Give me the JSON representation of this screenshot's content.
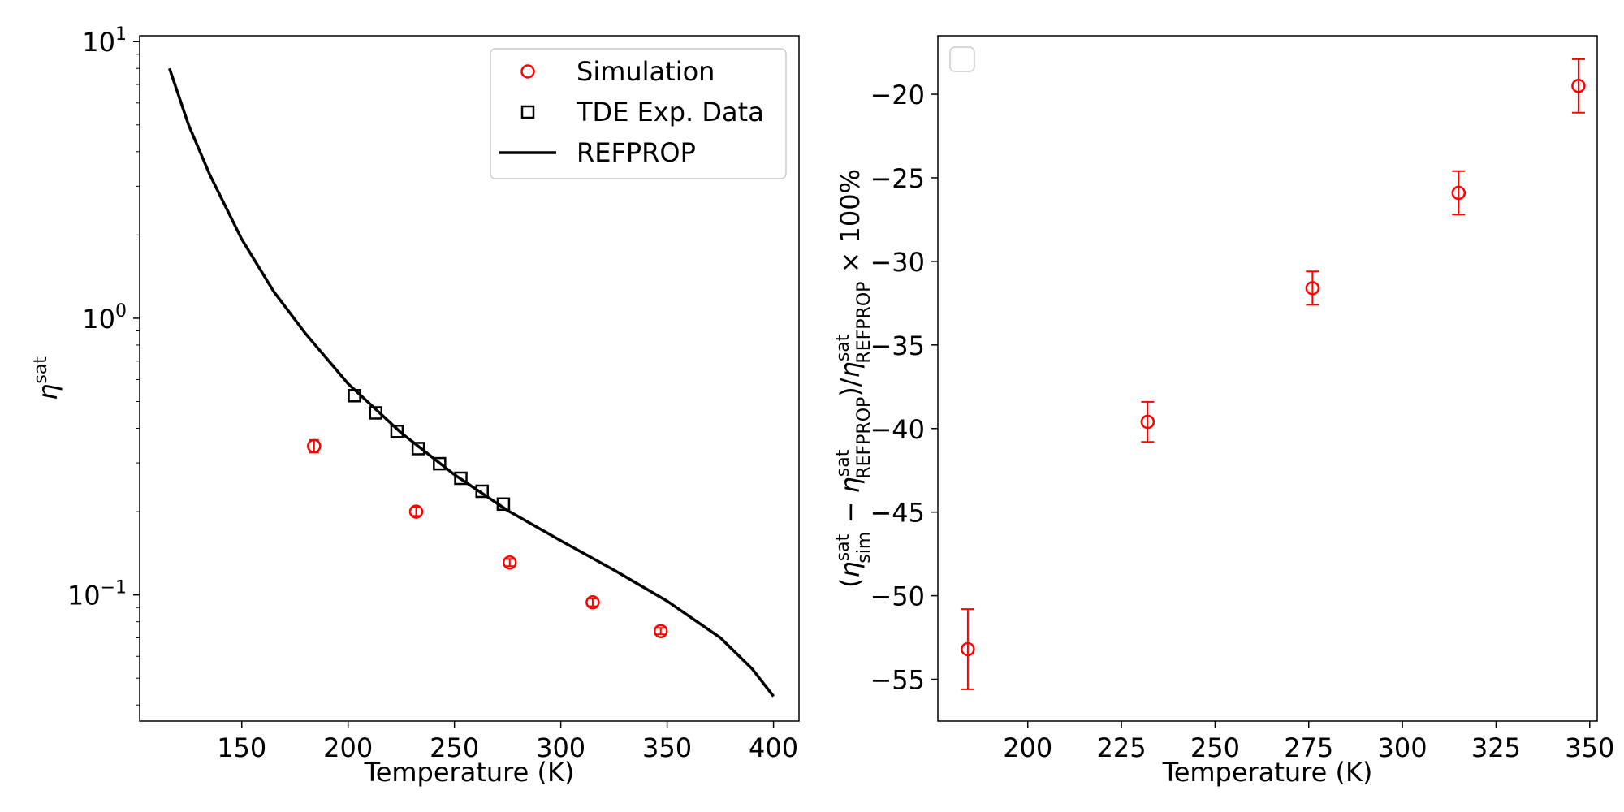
{
  "chart_data": [
    {
      "type": "scatter",
      "xlabel": "Temperature (K)",
      "ylabel": "η^sat",
      "yscale": "log",
      "xlim": [
        102,
        412
      ],
      "ylim": [
        0.035,
        10.5
      ],
      "xticks": [
        150,
        200,
        250,
        300,
        350,
        400
      ],
      "yticks": [
        {
          "value": 0.1,
          "base": "10",
          "exp": "−1"
        },
        {
          "value": 1,
          "base": "10",
          "exp": "0"
        },
        {
          "value": 10,
          "base": "10",
          "exp": "1"
        }
      ],
      "legend_position": "upper right",
      "series": [
        {
          "name": "Simulation",
          "marker": "circle",
          "color": "#ff0000",
          "x": [
            184,
            232,
            276,
            315,
            347
          ],
          "y": [
            0.345,
            0.2,
            0.131,
            0.094,
            0.074
          ],
          "yerr": [
            0.018,
            0.007,
            0.004,
            0.003,
            0.002
          ]
        },
        {
          "name": "TDE Exp. Data",
          "marker": "square",
          "color": "#000000",
          "x": [
            203,
            213,
            223,
            233,
            243,
            253,
            263,
            273
          ],
          "y": [
            0.525,
            0.455,
            0.39,
            0.338,
            0.298,
            0.264,
            0.237,
            0.213
          ]
        },
        {
          "name": "REFPROP",
          "marker": "line",
          "color": "#000000",
          "x": [
            116,
            125,
            135,
            150,
            165,
            180,
            200,
            225,
            250,
            275,
            300,
            325,
            350,
            375,
            390,
            400
          ],
          "y": [
            8.0,
            5.0,
            3.3,
            1.93,
            1.25,
            0.88,
            0.58,
            0.385,
            0.272,
            0.202,
            0.157,
            0.123,
            0.095,
            0.07,
            0.054,
            0.043
          ]
        }
      ]
    },
    {
      "type": "scatter",
      "xlabel": "Temperature (K)",
      "ylabel": "(η_sim^sat − η_REFPROP^sat)/η_REFPROP^sat × 100%",
      "xlim": [
        176,
        352
      ],
      "ylim": [
        -57.5,
        -16.5
      ],
      "xticks": [
        200,
        225,
        250,
        275,
        300,
        325,
        350
      ],
      "yticks": [
        -55,
        -50,
        -45,
        -40,
        -35,
        -30,
        -25,
        -20
      ],
      "legend_position": "upper left",
      "series": [
        {
          "marker": "circle",
          "color": "#ff0000",
          "x": [
            184,
            232,
            276,
            315,
            347
          ],
          "y": [
            -53.2,
            -39.6,
            -31.6,
            -25.9,
            -19.5
          ],
          "yerr": [
            2.4,
            1.2,
            1.0,
            1.3,
            1.6
          ]
        }
      ]
    }
  ]
}
